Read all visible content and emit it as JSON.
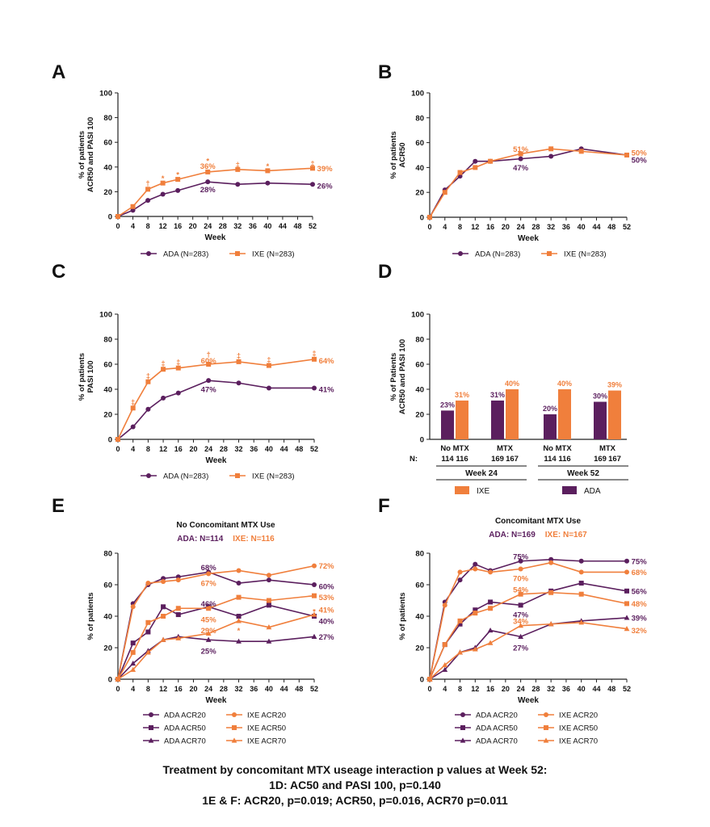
{
  "colors": {
    "ada": "#5b1f5e",
    "ixe": "#f07f3c",
    "axis": "#222222",
    "text": "#111111"
  },
  "footnote": {
    "line1": "Treatment by concomitant MTX useage interaction p values at Week 52:",
    "line2": "1D: AC50 and PASI 100, p=0.140",
    "line3": "1E & F: ACR20, p=0.019; ACR50, p=0.016, ACR70 p=0.011"
  },
  "chart_data": [
    {
      "panel": "A",
      "type": "line",
      "ylabel": [
        "% of patients",
        "ACR50 and PASI 100"
      ],
      "xlabel": "Week",
      "xticks": [
        0,
        4,
        8,
        12,
        16,
        20,
        24,
        28,
        32,
        36,
        40,
        44,
        48,
        52
      ],
      "yticks": [
        0,
        20,
        40,
        60,
        80,
        100
      ],
      "ylim": [
        0,
        100
      ],
      "xlim": [
        0,
        52
      ],
      "legend_position": "bottom",
      "series": [
        {
          "name": "ADA (N=283)",
          "color": "ada",
          "marker": "circle",
          "x": [
            0,
            4,
            8,
            12,
            16,
            24,
            32,
            40,
            52
          ],
          "y": [
            0,
            5,
            13,
            18,
            21,
            28,
            26,
            27,
            26
          ]
        },
        {
          "name": "IXE (N=283)",
          "color": "ixe",
          "marker": "square",
          "x": [
            0,
            4,
            8,
            12,
            16,
            24,
            32,
            40,
            52
          ],
          "y": [
            0,
            8,
            22,
            27,
            30,
            36,
            38,
            37,
            39
          ]
        }
      ],
      "annotations": [
        {
          "text": "36%",
          "x": 24,
          "y": 41,
          "color": "ixe"
        },
        {
          "text": "28%",
          "x": 24,
          "y": 22,
          "color": "ada"
        },
        {
          "text": "39%",
          "x": 53.2,
          "y": 39,
          "color": "ixe",
          "anchor": "start"
        },
        {
          "text": "26%",
          "x": 53.2,
          "y": 25,
          "color": "ada",
          "anchor": "start"
        },
        {
          "text": "†",
          "x": 8,
          "y": 27,
          "color": "ixe"
        },
        {
          "text": "*",
          "x": 12,
          "y": 31,
          "color": "ixe"
        },
        {
          "text": "*",
          "x": 16,
          "y": 34,
          "color": "ixe"
        },
        {
          "text": "*",
          "x": 24,
          "y": 45,
          "color": "ixe"
        },
        {
          "text": "‡",
          "x": 32,
          "y": 42,
          "color": "ixe"
        },
        {
          "text": "*",
          "x": 40,
          "y": 41,
          "color": "ixe"
        },
        {
          "text": "‡",
          "x": 52,
          "y": 43,
          "color": "ixe"
        }
      ]
    },
    {
      "panel": "B",
      "type": "line",
      "ylabel": [
        "% of patients",
        "ACR50"
      ],
      "xlabel": "Week",
      "xticks": [
        0,
        4,
        8,
        12,
        16,
        20,
        24,
        28,
        32,
        36,
        40,
        44,
        48,
        52
      ],
      "yticks": [
        0,
        20,
        40,
        60,
        80,
        100
      ],
      "ylim": [
        0,
        100
      ],
      "xlim": [
        0,
        52
      ],
      "legend_position": "bottom",
      "series": [
        {
          "name": "ADA (N=283)",
          "color": "ada",
          "marker": "circle",
          "x": [
            0,
            4,
            8,
            12,
            16,
            24,
            32,
            40,
            52
          ],
          "y": [
            0,
            22,
            33,
            45,
            45,
            47,
            49,
            55,
            50
          ]
        },
        {
          "name": "IXE (N=283)",
          "color": "ixe",
          "marker": "square",
          "x": [
            0,
            4,
            8,
            12,
            16,
            24,
            32,
            40,
            52
          ],
          "y": [
            0,
            20,
            36,
            40,
            45,
            51,
            55,
            53,
            50
          ]
        }
      ],
      "annotations": [
        {
          "text": "51%",
          "x": 24,
          "y": 55,
          "color": "ixe"
        },
        {
          "text": "47%",
          "x": 24,
          "y": 40,
          "color": "ada"
        },
        {
          "text": "50%",
          "x": 53.2,
          "y": 52,
          "color": "ixe",
          "anchor": "start"
        },
        {
          "text": "50%",
          "x": 53.2,
          "y": 46,
          "color": "ada",
          "anchor": "start"
        }
      ]
    },
    {
      "panel": "C",
      "type": "line",
      "ylabel": [
        "% of patients",
        "PASI 100"
      ],
      "xlabel": "Week",
      "xticks": [
        0,
        4,
        8,
        12,
        16,
        20,
        24,
        28,
        32,
        36,
        40,
        44,
        48,
        52
      ],
      "yticks": [
        0,
        20,
        40,
        60,
        80,
        100
      ],
      "ylim": [
        0,
        100
      ],
      "xlim": [
        0,
        52
      ],
      "legend_position": "bottom",
      "series": [
        {
          "name": "ADA (N=283)",
          "color": "ada",
          "marker": "circle",
          "x": [
            0,
            4,
            8,
            12,
            16,
            24,
            32,
            40,
            52
          ],
          "y": [
            0,
            10,
            24,
            33,
            37,
            47,
            45,
            41,
            41
          ]
        },
        {
          "name": "IXE (N=283)",
          "color": "ixe",
          "marker": "square",
          "x": [
            0,
            4,
            8,
            12,
            16,
            24,
            32,
            40,
            52
          ],
          "y": [
            0,
            25,
            46,
            56,
            57,
            60,
            62,
            59,
            64
          ]
        }
      ],
      "annotations": [
        {
          "text": "60%",
          "x": 24,
          "y": 63,
          "color": "ixe"
        },
        {
          "text": "47%",
          "x": 24,
          "y": 40,
          "color": "ada"
        },
        {
          "text": "64%",
          "x": 53.2,
          "y": 63,
          "color": "ixe",
          "anchor": "start"
        },
        {
          "text": "41%",
          "x": 53.2,
          "y": 40,
          "color": "ada",
          "anchor": "start"
        },
        {
          "text": "‡",
          "x": 4,
          "y": 30,
          "color": "ixe"
        },
        {
          "text": "‡",
          "x": 8,
          "y": 51,
          "color": "ixe"
        },
        {
          "text": "‡",
          "x": 12,
          "y": 61,
          "color": "ixe"
        },
        {
          "text": "‡",
          "x": 16,
          "y": 62,
          "color": "ixe"
        },
        {
          "text": "†",
          "x": 24,
          "y": 68,
          "color": "ixe"
        },
        {
          "text": "‡",
          "x": 32,
          "y": 67,
          "color": "ixe"
        },
        {
          "text": "‡",
          "x": 40,
          "y": 64,
          "color": "ixe"
        },
        {
          "text": "‡",
          "x": 52,
          "y": 69,
          "color": "ixe"
        }
      ]
    },
    {
      "panel": "D",
      "type": "bar",
      "ylabel": [
        "% of Patients",
        "ACR50 and PASI 100"
      ],
      "yticks": [
        0,
        20,
        40,
        60,
        80,
        100
      ],
      "ylim": [
        0,
        100
      ],
      "n_label": "N:",
      "groups": [
        {
          "label": "No MTX",
          "week": "Week 24",
          "ada": 23,
          "ixe": 31,
          "ada_label": "23%",
          "ixe_label": "31%",
          "n_ada": "114",
          "n_ixe": "116"
        },
        {
          "label": "MTX",
          "week": "Week 24",
          "ada": 31,
          "ixe": 40,
          "ada_label": "31%",
          "ixe_label": "40%",
          "n_ada": "169",
          "n_ixe": "167"
        },
        {
          "label": "No MTX",
          "week": "Week 52",
          "ada": 20,
          "ixe": 40,
          "ada_label": "20%",
          "ixe_label": "40%",
          "n_ada": "114",
          "n_ixe": "116"
        },
        {
          "label": "MTX",
          "week": "Week 52",
          "ada": 30,
          "ixe": 39,
          "ada_label": "30%",
          "ixe_label": "39%",
          "n_ada": "169",
          "n_ixe": "167"
        }
      ],
      "weeks": [
        "Week 24",
        "Week 52"
      ],
      "legend": [
        {
          "name": "IXE",
          "color": "ixe"
        },
        {
          "name": "ADA",
          "color": "ada"
        }
      ]
    },
    {
      "panel": "E",
      "type": "line",
      "title": "No Concomitant MTX Use",
      "subtitle": [
        {
          "text": "ADA: N=114",
          "color": "ada"
        },
        {
          "text": "IXE:  N=116",
          "color": "ixe"
        }
      ],
      "ylabel": [
        "% of patients"
      ],
      "xlabel": "Week",
      "xticks": [
        0,
        4,
        8,
        12,
        16,
        20,
        24,
        28,
        32,
        36,
        40,
        44,
        48,
        52
      ],
      "yticks": [
        0,
        20,
        40,
        60,
        80
      ],
      "ylim": [
        0,
        80
      ],
      "xlim": [
        0,
        52
      ],
      "legend_position": "bottom",
      "series": [
        {
          "name": "ADA ACR20",
          "color": "ada",
          "marker": "circle",
          "x": [
            0,
            4,
            8,
            12,
            16,
            24,
            32,
            40,
            52
          ],
          "y": [
            0,
            48,
            60,
            64,
            65,
            68,
            61,
            63,
            60
          ]
        },
        {
          "name": "ADA ACR50",
          "color": "ada",
          "marker": "square",
          "x": [
            0,
            4,
            8,
            12,
            16,
            24,
            32,
            40,
            52
          ],
          "y": [
            0,
            23,
            30,
            46,
            41,
            46,
            40,
            47,
            40
          ]
        },
        {
          "name": "ADA ACR70",
          "color": "ada",
          "marker": "triangle",
          "x": [
            0,
            4,
            8,
            12,
            16,
            24,
            32,
            40,
            52
          ],
          "y": [
            0,
            10,
            18,
            25,
            27,
            25,
            24,
            24,
            27
          ]
        },
        {
          "name": "IXE ACR20",
          "color": "ixe",
          "marker": "circle",
          "x": [
            0,
            4,
            8,
            12,
            16,
            24,
            32,
            40,
            52
          ],
          "y": [
            0,
            46,
            61,
            62,
            63,
            67,
            69,
            66,
            72
          ]
        },
        {
          "name": "IXE ACR50",
          "color": "ixe",
          "marker": "square",
          "x": [
            0,
            4,
            8,
            12,
            16,
            24,
            32,
            40,
            52
          ],
          "y": [
            0,
            17,
            36,
            40,
            45,
            45,
            52,
            50,
            53
          ]
        },
        {
          "name": "IXE ACR70",
          "color": "ixe",
          "marker": "triangle",
          "x": [
            0,
            4,
            8,
            12,
            16,
            24,
            32,
            40,
            52
          ],
          "y": [
            0,
            6,
            17,
            25,
            26,
            29,
            37,
            33,
            41
          ]
        }
      ],
      "annotations": [
        {
          "text": "68%",
          "x": 24,
          "y": 71,
          "color": "ada"
        },
        {
          "text": "67%",
          "x": 24,
          "y": 61,
          "color": "ixe"
        },
        {
          "text": "46%",
          "x": 24,
          "y": 48,
          "color": "ada"
        },
        {
          "text": "45%",
          "x": 24,
          "y": 38,
          "color": "ixe"
        },
        {
          "text": "29%",
          "x": 24,
          "y": 31,
          "color": "ixe"
        },
        {
          "text": "25%",
          "x": 24,
          "y": 18,
          "color": "ada"
        },
        {
          "text": "*",
          "x": 32,
          "y": 31,
          "color": "ixe"
        },
        {
          "text": "*",
          "x": 52,
          "y": 43,
          "color": "ixe"
        },
        {
          "text": "72%",
          "x": 53.2,
          "y": 72,
          "color": "ixe",
          "anchor": "start"
        },
        {
          "text": "60%",
          "x": 53.2,
          "y": 59,
          "color": "ada",
          "anchor": "start"
        },
        {
          "text": "53%",
          "x": 53.2,
          "y": 52,
          "color": "ixe",
          "anchor": "start"
        },
        {
          "text": "41%",
          "x": 53.2,
          "y": 44,
          "color": "ixe",
          "anchor": "start"
        },
        {
          "text": "40%",
          "x": 53.2,
          "y": 37,
          "color": "ada",
          "anchor": "start"
        },
        {
          "text": "27%",
          "x": 53.2,
          "y": 27,
          "color": "ada",
          "anchor": "start"
        }
      ]
    },
    {
      "panel": "F",
      "type": "line",
      "title": "Concomitant MTX Use",
      "subtitle": [
        {
          "text": "ADA: N=169",
          "color": "ada"
        },
        {
          "text": "IXE:  N=167",
          "color": "ixe"
        }
      ],
      "ylabel": [
        "% of patients"
      ],
      "xlabel": "Week",
      "xticks": [
        0,
        4,
        8,
        12,
        16,
        20,
        24,
        28,
        32,
        36,
        40,
        44,
        48,
        52
      ],
      "yticks": [
        0,
        20,
        40,
        60,
        80
      ],
      "ylim": [
        0,
        80
      ],
      "xlim": [
        0,
        52
      ],
      "legend_position": "bottom",
      "series": [
        {
          "name": "ADA ACR20",
          "color": "ada",
          "marker": "circle",
          "x": [
            0,
            4,
            8,
            12,
            16,
            24,
            32,
            40,
            52
          ],
          "y": [
            0,
            49,
            63,
            73,
            69,
            75,
            76,
            75,
            75
          ]
        },
        {
          "name": "ADA ACR50",
          "color": "ada",
          "marker": "square",
          "x": [
            0,
            4,
            8,
            12,
            16,
            24,
            32,
            40,
            52
          ],
          "y": [
            0,
            22,
            35,
            44,
            49,
            47,
            56,
            61,
            56
          ]
        },
        {
          "name": "ADA ACR70",
          "color": "ada",
          "marker": "triangle",
          "x": [
            0,
            4,
            8,
            12,
            16,
            24,
            32,
            40,
            52
          ],
          "y": [
            0,
            6,
            17,
            20,
            31,
            27,
            35,
            37,
            39
          ]
        },
        {
          "name": "IXE ACR20",
          "color": "ixe",
          "marker": "circle",
          "x": [
            0,
            4,
            8,
            12,
            16,
            24,
            32,
            40,
            52
          ],
          "y": [
            0,
            47,
            68,
            70,
            68,
            70,
            74,
            68,
            68
          ]
        },
        {
          "name": "IXE ACR50",
          "color": "ixe",
          "marker": "square",
          "x": [
            0,
            4,
            8,
            12,
            16,
            24,
            32,
            40,
            52
          ],
          "y": [
            0,
            22,
            37,
            42,
            45,
            54,
            55,
            54,
            48
          ]
        },
        {
          "name": "IXE ACR70",
          "color": "ixe",
          "marker": "triangle",
          "x": [
            0,
            4,
            8,
            12,
            16,
            24,
            32,
            40,
            52
          ],
          "y": [
            0,
            9,
            17,
            19,
            23,
            34,
            35,
            36,
            32
          ]
        }
      ],
      "annotations": [
        {
          "text": "75%",
          "x": 24,
          "y": 78,
          "color": "ada"
        },
        {
          "text": "70%",
          "x": 24,
          "y": 64,
          "color": "ixe"
        },
        {
          "text": "54%",
          "x": 24,
          "y": 57,
          "color": "ixe"
        },
        {
          "text": "47%",
          "x": 24,
          "y": 41,
          "color": "ada"
        },
        {
          "text": "34%",
          "x": 24,
          "y": 37,
          "color": "ixe"
        },
        {
          "text": "27%",
          "x": 24,
          "y": 20,
          "color": "ada"
        },
        {
          "text": "75%",
          "x": 53.2,
          "y": 75,
          "color": "ada",
          "anchor": "start"
        },
        {
          "text": "68%",
          "x": 53.2,
          "y": 68,
          "color": "ixe",
          "anchor": "start"
        },
        {
          "text": "56%",
          "x": 53.2,
          "y": 56,
          "color": "ada",
          "anchor": "start"
        },
        {
          "text": "48%",
          "x": 53.2,
          "y": 48,
          "color": "ixe",
          "anchor": "start"
        },
        {
          "text": "39%",
          "x": 53.2,
          "y": 39,
          "color": "ada",
          "anchor": "start"
        },
        {
          "text": "32%",
          "x": 53.2,
          "y": 31,
          "color": "ixe",
          "anchor": "start"
        }
      ]
    }
  ]
}
